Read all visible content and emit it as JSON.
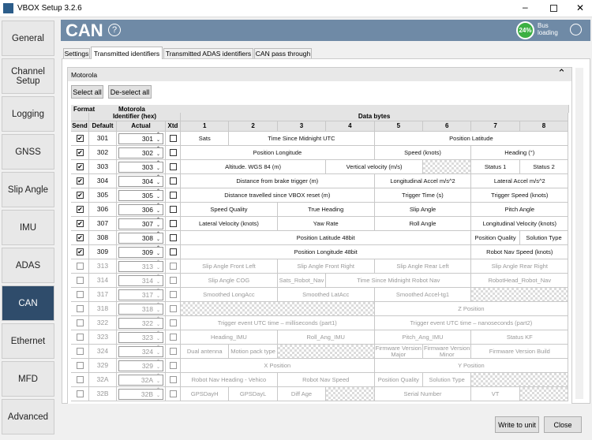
{
  "window": {
    "title": "VBOX Setup 3.2.6"
  },
  "sidebar": {
    "items": [
      "General",
      "Channel Setup",
      "Logging",
      "GNSS",
      "Slip Angle",
      "IMU",
      "ADAS",
      "CAN",
      "Ethernet",
      "MFD",
      "Advanced"
    ],
    "selected": 7
  },
  "header": {
    "title": "CAN",
    "help": "?",
    "bus_load": "24%",
    "bus_label": "Bus loading"
  },
  "tabs": {
    "items": [
      "Settings",
      "Transmitted identifiers",
      "Transmitted ADAS identifiers",
      "CAN pass through"
    ],
    "active": 1
  },
  "panel": {
    "title": "Motorola",
    "buttons": [
      "Select all",
      "De-select all"
    ]
  },
  "table": {
    "format_label": "Format",
    "format": "Motorola",
    "id_header": "Identifier (hex)",
    "data_header": "Data bytes",
    "columns": [
      "Send",
      "Default",
      "Actual",
      "Xtd",
      "1",
      "2",
      "3",
      "4",
      "5",
      "6",
      "7",
      "8"
    ],
    "rows": [
      {
        "send": true,
        "default": "301",
        "actual": "301",
        "cells": [
          "Sats",
          "Time Since Midnight UTC",
          "Position Latitude"
        ]
      },
      {
        "send": true,
        "default": "302",
        "actual": "302",
        "cells": [
          "Position Longitude",
          "Speed (knots)",
          "Heading (°)"
        ]
      },
      {
        "send": true,
        "default": "303",
        "actual": "303",
        "cells": [
          "Altitude.  WGS 84 (m)",
          "Vertical velocity (m/s)",
          "Status 1",
          "Status 2"
        ]
      },
      {
        "send": true,
        "default": "304",
        "actual": "304",
        "cells": [
          "Distance from brake trigger (m)",
          "Longitudinal Accel m/s^2",
          "Lateral Accel m/s^2"
        ]
      },
      {
        "send": true,
        "default": "305",
        "actual": "305",
        "cells": [
          "Distance travelled since VBOX reset (m)",
          "Trigger Time (s)",
          "Trigger Speed (knots)"
        ]
      },
      {
        "send": true,
        "default": "306",
        "actual": "306",
        "cells": [
          "Speed Quality",
          "True Heading",
          "Slip Angle",
          "Pitch Angle"
        ]
      },
      {
        "send": true,
        "default": "307",
        "actual": "307",
        "cells": [
          "Lateral Velocity (knots)",
          "Yaw Rate",
          "Roll Angle",
          "Longitudinal Velocity (knots)"
        ]
      },
      {
        "send": true,
        "default": "308",
        "actual": "308",
        "cells": [
          "Position Latitude 48bit",
          "Position Quality",
          "Solution Type"
        ]
      },
      {
        "send": true,
        "default": "309",
        "actual": "309",
        "cells": [
          "Position Longitude 48bit",
          "Robot Nav Speed (knots)"
        ]
      },
      {
        "send": false,
        "default": "313",
        "actual": "313",
        "cells": [
          "Slip Angle Front Left",
          "Slip Angle Front Right",
          "Slip Angle Rear Left",
          "Slip Angle Rear Right"
        ]
      },
      {
        "send": false,
        "default": "314",
        "actual": "314",
        "cells": [
          "Slip Angle COG",
          "Sats_Robot_Nav",
          "Time Since Midnight Robot Nav",
          "RobotHead_Robot_Nav"
        ]
      },
      {
        "send": false,
        "default": "317",
        "actual": "317",
        "cells": [
          "Smoothed LongAcc",
          "Smoothed LatAcc",
          "Smoothed Accel-tg1"
        ]
      },
      {
        "send": false,
        "default": "318",
        "actual": "318",
        "cells": [
          "Z Position"
        ]
      },
      {
        "send": false,
        "default": "322",
        "actual": "322",
        "cells": [
          "Trigger event UTC time – milliseconds (part1)",
          "Trigger event UTC time – nanoseconds (part2)"
        ]
      },
      {
        "send": false,
        "default": "323",
        "actual": "323",
        "cells": [
          "Heading_IMU",
          "Roll_Ang_IMU",
          "Pitch_Ang_IMU",
          "Status KF"
        ]
      },
      {
        "send": false,
        "default": "324",
        "actual": "324",
        "cells": [
          "Dual antenna",
          "Motion pack type",
          "Firmware Version Major",
          "Firmware Version Minor",
          "Firmware Version Build"
        ]
      },
      {
        "send": false,
        "default": "329",
        "actual": "329",
        "cells": [
          "X Position",
          "Y Position"
        ]
      },
      {
        "send": false,
        "default": "32A",
        "actual": "32A",
        "cells": [
          "Robot Nav Heading - Vehico",
          "Robot Nav Speed",
          "Position Quality",
          "Solution Type"
        ]
      },
      {
        "send": false,
        "default": "32B",
        "actual": "32B",
        "cells": [
          "GPSDayH",
          "GPSDayL",
          "Diff Age",
          "Serial Number",
          "VT"
        ]
      }
    ]
  },
  "footer": {
    "buttons": [
      "Write to unit",
      "Close"
    ]
  }
}
